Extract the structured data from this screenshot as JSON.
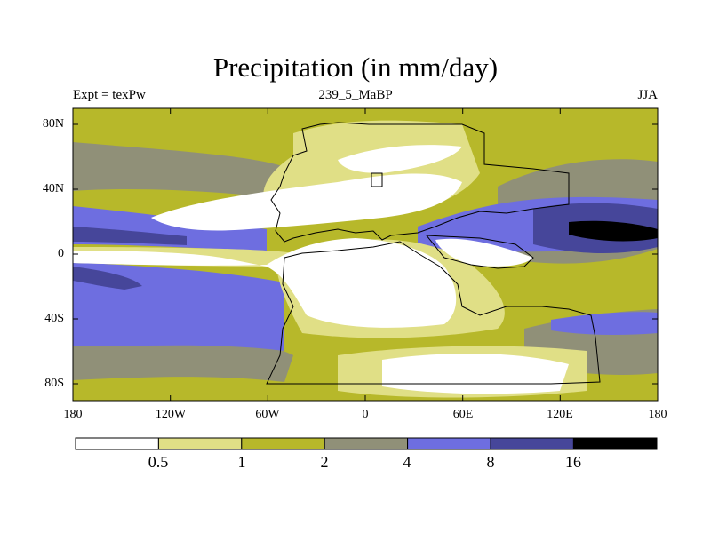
{
  "title": "Precipitation (in mm/day)",
  "subtitle_left": "Expt = texPw",
  "subtitle_center": "239_5_MaBP",
  "subtitle_right": "JJA",
  "y_axis_labels": [
    "80N",
    "40N",
    "0",
    "40S",
    "80S"
  ],
  "x_axis_labels": [
    "180",
    "120W",
    "60W",
    "0",
    "60E",
    "120E",
    "180"
  ],
  "colorbar": {
    "colors": [
      "#ffffff",
      "#e0df86",
      "#b7b82a",
      "#909078",
      "#6e6ee0",
      "#46469a",
      "#000000"
    ],
    "labels": [
      "0.5",
      "1",
      "2",
      "4",
      "8",
      "16"
    ]
  }
}
